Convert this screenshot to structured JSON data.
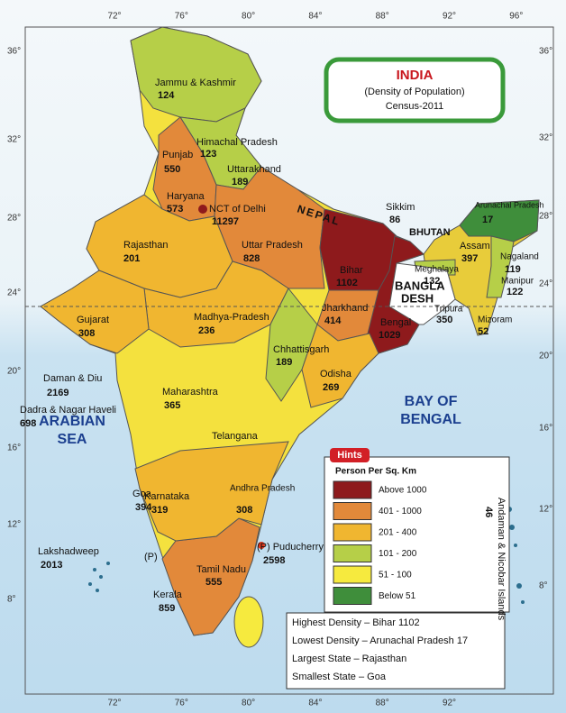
{
  "header": {
    "title": "INDIA",
    "subtitle": "(Density of Population)",
    "note": "Census-2011"
  },
  "graticule": {
    "top": [
      "72°",
      "76°",
      "80°",
      "84°",
      "88°",
      "92°",
      "96°"
    ],
    "bottom": [
      "72°",
      "76°",
      "80°",
      "84°",
      "88°",
      "92°"
    ],
    "left": [
      "36°",
      "32°",
      "28°",
      "24°",
      "20°",
      "16°",
      "12°",
      "8°"
    ],
    "right": [
      "36°",
      "32°",
      "28°",
      "24°",
      "20°",
      "16°",
      "12°",
      "8°"
    ]
  },
  "states": [
    {
      "name": "Jammu & Kashmir",
      "density": "124"
    },
    {
      "name": "Himachal Pradesh",
      "density": "123"
    },
    {
      "name": "Punjab",
      "density": "550"
    },
    {
      "name": "Uttarakhand",
      "density": "189"
    },
    {
      "name": "Haryana",
      "density": "573"
    },
    {
      "name": "NCT of Delhi",
      "density": "11297"
    },
    {
      "name": "Rajasthan",
      "density": "201"
    },
    {
      "name": "Uttar Pradesh",
      "density": "828"
    },
    {
      "name": "Sikkim",
      "density": "86"
    },
    {
      "name": "Bihar",
      "density": "1102"
    },
    {
      "name": "Arunachal Pradesh",
      "density": "17"
    },
    {
      "name": "Assam",
      "density": "397"
    },
    {
      "name": "Nagaland",
      "density": "119"
    },
    {
      "name": "Meghalaya",
      "density": "132"
    },
    {
      "name": "Manipur",
      "density": "122"
    },
    {
      "name": "Tripura",
      "density": "350"
    },
    {
      "name": "Mizoram",
      "density": "52"
    },
    {
      "name": "Gujarat",
      "density": "308"
    },
    {
      "name": "Madhya-Pradesh",
      "density": "236"
    },
    {
      "name": "Jharkhand",
      "density": "414"
    },
    {
      "name": "Bengal",
      "density": "1029"
    },
    {
      "name": "Chhattisgarh",
      "density": "189"
    },
    {
      "name": "Odisha",
      "density": "269"
    },
    {
      "name": "Daman & Diu",
      "density": "2169"
    },
    {
      "name": "Dadra & Nagar Haveli",
      "density": "698"
    },
    {
      "name": "Maharashtra",
      "density": "365"
    },
    {
      "name": "Goa",
      "density": "394"
    },
    {
      "name": "Karnataka",
      "density": "319"
    },
    {
      "name": "Andhra Pradesh",
      "density": "308"
    },
    {
      "name": "(P) Puducherry",
      "density": "2598"
    },
    {
      "name": "Tamil Nadu",
      "density": "555"
    },
    {
      "name": "Kerala",
      "density": "859"
    },
    {
      "name": "Lakshadweep",
      "density": "2013"
    },
    {
      "name": "Andaman & Nicobar Islands",
      "density": "46"
    }
  ],
  "places": {
    "telangana": "Telangana",
    "mahe": "(P)",
    "yanam": "(P)",
    "nepal": "NEPAL",
    "bhutan": "BHUTAN",
    "bangla1": "BANGLA",
    "bangla2": "DESH",
    "arabian1": "ARABIAN",
    "arabian2": "SEA",
    "bay1": "BAY OF",
    "bay2": "BENGAL"
  },
  "legend": {
    "badge": "Hints",
    "title": "Person Per Sq. Km",
    "items": [
      {
        "label": "Above 1000",
        "color": "#8e1a1c"
      },
      {
        "label": "401 - 1000",
        "color": "#e2893a"
      },
      {
        "label": "201 - 400",
        "color": "#f0b630"
      },
      {
        "label": "101 - 200",
        "color": "#b6cf48"
      },
      {
        "label": "51 - 100",
        "color": "#f6ea3e"
      },
      {
        "label": "Below 51",
        "color": "#3f8e3b"
      }
    ]
  },
  "facts": [
    "Highest Density – Bihar 1102",
    "Lowest Density – Arunachal Pradesh 17",
    "Largest State – Rajasthan",
    "Smallest State – Goa"
  ]
}
